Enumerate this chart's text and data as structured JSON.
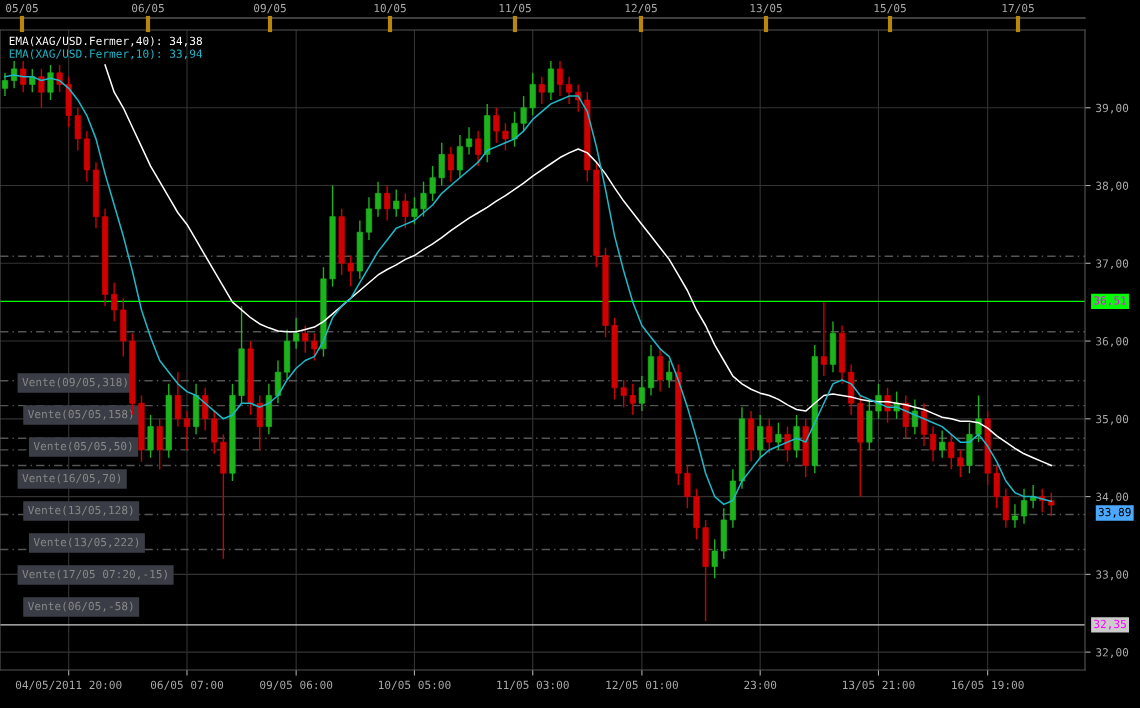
{
  "chart_data": {
    "type": "candlestick",
    "categories": [
      null,
      null,
      null,
      null,
      null,
      null,
      null,
      "04/05/2011 20:00",
      null,
      null,
      null,
      null,
      null,
      null,
      null,
      null,
      null,
      null,
      null,
      null,
      "06/05 07:00",
      null,
      null,
      null,
      null,
      null,
      null,
      null,
      null,
      null,
      null,
      null,
      "09/05 06:00",
      null,
      null,
      null,
      null,
      null,
      null,
      null,
      null,
      null,
      null,
      null,
      null,
      "10/05 05:00",
      null,
      null,
      null,
      null,
      null,
      null,
      null,
      null,
      null,
      null,
      null,
      null,
      "11/05 03:00",
      null,
      null,
      null,
      null,
      null,
      null,
      null,
      null,
      null,
      null,
      null,
      "12/05 01:00",
      null,
      null,
      null,
      null,
      null,
      null,
      null,
      null,
      null,
      null,
      null,
      null,
      "23:00",
      null,
      null,
      null,
      null,
      null,
      null,
      null,
      null,
      null,
      null,
      null,
      null,
      "13/05 21:00",
      null,
      null,
      null,
      null,
      null,
      null,
      null,
      null,
      null,
      null,
      null,
      "16/05 19:00",
      null,
      null,
      null,
      null,
      null,
      null,
      null
    ],
    "ohlc": [
      [
        39.25,
        39.45,
        39.15,
        39.35
      ],
      [
        39.35,
        39.6,
        39.25,
        39.5
      ],
      [
        39.5,
        39.6,
        39.2,
        39.3
      ],
      [
        39.3,
        39.5,
        39.2,
        39.4
      ],
      [
        39.4,
        39.5,
        39.0,
        39.2
      ],
      [
        39.2,
        39.55,
        39.1,
        39.45
      ],
      [
        39.45,
        39.55,
        39.2,
        39.3
      ],
      [
        39.3,
        39.4,
        38.75,
        38.9
      ],
      [
        38.9,
        39.0,
        38.45,
        38.6
      ],
      [
        38.6,
        38.7,
        38.05,
        38.2
      ],
      [
        38.2,
        38.3,
        37.45,
        37.6
      ],
      [
        37.6,
        37.7,
        36.45,
        36.6
      ],
      [
        36.6,
        36.75,
        36.25,
        36.4
      ],
      [
        36.4,
        36.55,
        35.8,
        36.0
      ],
      [
        36.0,
        36.1,
        35.05,
        35.2
      ],
      [
        35.2,
        35.3,
        34.45,
        34.6
      ],
      [
        34.6,
        35.05,
        34.5,
        34.9
      ],
      [
        34.9,
        35.0,
        34.35,
        34.6
      ],
      [
        34.6,
        35.45,
        34.5,
        35.3
      ],
      [
        35.3,
        35.6,
        34.9,
        35.0
      ],
      [
        35.0,
        35.1,
        34.6,
        34.9
      ],
      [
        34.9,
        35.45,
        34.8,
        35.3
      ],
      [
        35.3,
        35.4,
        34.85,
        35.0
      ],
      [
        35.0,
        35.1,
        34.55,
        34.7
      ],
      [
        34.7,
        34.8,
        33.2,
        34.3
      ],
      [
        34.3,
        35.45,
        34.2,
        35.3
      ],
      [
        35.3,
        36.45,
        35.2,
        35.9
      ],
      [
        35.9,
        36.0,
        35.05,
        35.2
      ],
      [
        35.2,
        35.3,
        34.6,
        34.9
      ],
      [
        34.9,
        35.45,
        34.8,
        35.3
      ],
      [
        35.3,
        35.75,
        35.2,
        35.6
      ],
      [
        35.6,
        36.15,
        35.5,
        36.0
      ],
      [
        36.0,
        36.3,
        35.9,
        36.1
      ],
      [
        36.1,
        36.2,
        35.85,
        36.0
      ],
      [
        36.0,
        36.1,
        35.75,
        35.9
      ],
      [
        35.9,
        36.95,
        35.8,
        36.8
      ],
      [
        36.8,
        38.0,
        36.7,
        37.6
      ],
      [
        37.6,
        37.7,
        36.85,
        37.0
      ],
      [
        37.0,
        37.1,
        36.7,
        36.9
      ],
      [
        36.9,
        37.55,
        36.8,
        37.4
      ],
      [
        37.4,
        37.85,
        37.3,
        37.7
      ],
      [
        37.7,
        38.05,
        37.6,
        37.9
      ],
      [
        37.9,
        38.0,
        37.55,
        37.7
      ],
      [
        37.7,
        37.95,
        37.6,
        37.8
      ],
      [
        37.8,
        37.9,
        37.45,
        37.6
      ],
      [
        37.6,
        37.85,
        37.5,
        37.7
      ],
      [
        37.7,
        38.05,
        37.6,
        37.9
      ],
      [
        37.9,
        38.25,
        37.8,
        38.1
      ],
      [
        38.1,
        38.55,
        38.0,
        38.4
      ],
      [
        38.4,
        38.5,
        38.05,
        38.2
      ],
      [
        38.2,
        38.65,
        38.1,
        38.5
      ],
      [
        38.5,
        38.75,
        38.4,
        38.6
      ],
      [
        38.6,
        38.7,
        38.25,
        38.4
      ],
      [
        38.4,
        39.05,
        38.3,
        38.9
      ],
      [
        38.9,
        39.0,
        38.55,
        38.7
      ],
      [
        38.7,
        38.8,
        38.45,
        38.6
      ],
      [
        38.6,
        38.95,
        38.5,
        38.8
      ],
      [
        38.8,
        39.15,
        38.7,
        39.0
      ],
      [
        39.0,
        39.45,
        38.9,
        39.3
      ],
      [
        39.3,
        39.4,
        39.05,
        39.2
      ],
      [
        39.2,
        39.6,
        39.1,
        39.5
      ],
      [
        39.5,
        39.6,
        39.15,
        39.3
      ],
      [
        39.3,
        39.4,
        39.05,
        39.2
      ],
      [
        39.2,
        39.3,
        38.95,
        39.1
      ],
      [
        39.1,
        39.2,
        38.05,
        38.2
      ],
      [
        38.2,
        38.3,
        36.95,
        37.1
      ],
      [
        37.1,
        37.2,
        36.05,
        36.2
      ],
      [
        36.2,
        36.3,
        35.25,
        35.4
      ],
      [
        35.4,
        35.5,
        35.15,
        35.3
      ],
      [
        35.3,
        35.45,
        35.05,
        35.2
      ],
      [
        35.2,
        35.55,
        35.1,
        35.4
      ],
      [
        35.4,
        35.95,
        35.3,
        35.8
      ],
      [
        35.8,
        35.9,
        35.35,
        35.5
      ],
      [
        35.5,
        35.75,
        35.4,
        35.6
      ],
      [
        35.6,
        35.7,
        34.15,
        34.3
      ],
      [
        34.3,
        34.4,
        33.85,
        34.0
      ],
      [
        34.0,
        34.1,
        33.45,
        33.6
      ],
      [
        33.6,
        33.7,
        32.4,
        33.1
      ],
      [
        33.1,
        33.45,
        32.95,
        33.3
      ],
      [
        33.3,
        33.85,
        33.2,
        33.7
      ],
      [
        33.7,
        34.35,
        33.6,
        34.2
      ],
      [
        34.2,
        35.15,
        34.1,
        35.0
      ],
      [
        35.0,
        35.1,
        34.45,
        34.6
      ],
      [
        34.6,
        35.05,
        34.5,
        34.9
      ],
      [
        34.9,
        35.0,
        34.55,
        34.7
      ],
      [
        34.7,
        34.95,
        34.6,
        34.8
      ],
      [
        34.8,
        34.9,
        34.45,
        34.6
      ],
      [
        34.6,
        35.05,
        34.5,
        34.9
      ],
      [
        34.9,
        35.0,
        34.25,
        34.4
      ],
      [
        34.4,
        35.95,
        34.3,
        35.8
      ],
      [
        35.8,
        36.5,
        35.55,
        35.7
      ],
      [
        35.7,
        36.25,
        35.6,
        36.1
      ],
      [
        36.1,
        36.2,
        35.45,
        35.6
      ],
      [
        35.6,
        35.7,
        35.05,
        35.2
      ],
      [
        35.2,
        35.3,
        34.0,
        34.7
      ],
      [
        34.7,
        35.25,
        34.6,
        35.1
      ],
      [
        35.1,
        35.45,
        35.0,
        35.3
      ],
      [
        35.3,
        35.4,
        34.95,
        35.1
      ],
      [
        35.1,
        35.35,
        35.0,
        35.2
      ],
      [
        35.2,
        35.3,
        34.75,
        34.9
      ],
      [
        34.9,
        35.25,
        34.8,
        35.1
      ],
      [
        35.1,
        35.2,
        34.65,
        34.8
      ],
      [
        34.8,
        34.9,
        34.45,
        34.6
      ],
      [
        34.6,
        34.85,
        34.5,
        34.7
      ],
      [
        34.7,
        34.8,
        34.35,
        34.5
      ],
      [
        34.5,
        34.6,
        34.25,
        34.4
      ],
      [
        34.4,
        34.95,
        34.3,
        34.8
      ],
      [
        34.8,
        35.3,
        34.7,
        35.0
      ],
      [
        35.0,
        35.1,
        34.15,
        34.3
      ],
      [
        34.3,
        34.4,
        33.85,
        34.0
      ],
      [
        34.0,
        34.1,
        33.6,
        33.7
      ],
      [
        33.7,
        33.9,
        33.6,
        33.75
      ],
      [
        33.75,
        34.1,
        33.65,
        33.95
      ],
      [
        33.95,
        34.15,
        33.85,
        34.0
      ],
      [
        34.0,
        34.1,
        33.8,
        33.95
      ],
      [
        33.95,
        34.05,
        33.75,
        33.89
      ]
    ],
    "series": [
      {
        "name": "EMA(XAG/USD.Fermer,40): 34,38",
        "type": "line",
        "color": "#ffffff",
        "values": [
          null,
          null,
          null,
          null,
          null,
          null,
          null,
          null,
          null,
          null,
          null,
          39.55,
          39.2,
          39.0,
          38.75,
          38.5,
          38.25,
          38.05,
          37.85,
          37.65,
          37.5,
          37.3,
          37.1,
          36.9,
          36.7,
          36.5,
          36.4,
          36.3,
          36.22,
          36.17,
          36.13,
          36.12,
          36.12,
          36.15,
          36.18,
          36.25,
          36.35,
          36.45,
          36.55,
          36.65,
          36.75,
          36.85,
          36.92,
          36.98,
          37.05,
          37.1,
          37.18,
          37.25,
          37.33,
          37.42,
          37.5,
          37.58,
          37.65,
          37.72,
          37.8,
          37.87,
          37.95,
          38.03,
          38.12,
          38.2,
          38.28,
          38.36,
          38.42,
          38.47,
          38.42,
          38.3,
          38.15,
          37.97,
          37.8,
          37.65,
          37.5,
          37.35,
          37.2,
          37.05,
          36.85,
          36.65,
          36.4,
          36.2,
          35.95,
          35.75,
          35.55,
          35.45,
          35.38,
          35.33,
          35.3,
          35.25,
          35.18,
          35.12,
          35.1,
          35.2,
          35.3,
          35.32,
          35.3,
          35.28,
          35.25,
          35.23,
          35.22,
          35.22,
          35.2,
          35.18,
          35.15,
          35.12,
          35.07,
          35.02,
          35.0,
          34.97,
          34.97,
          34.95,
          34.88,
          34.78,
          34.7,
          34.62,
          34.55,
          34.5,
          34.45,
          34.4
        ]
      },
      {
        "name": "EMA(XAG/USD.Fermer,10): 33,94",
        "type": "line",
        "color": "#1fb8c8",
        "values": [
          39.4,
          39.42,
          39.4,
          39.4,
          39.35,
          39.38,
          39.35,
          39.25,
          39.1,
          38.9,
          38.6,
          38.15,
          37.75,
          37.35,
          36.9,
          36.4,
          36.05,
          35.75,
          35.6,
          35.45,
          35.35,
          35.3,
          35.2,
          35.1,
          35.0,
          35.05,
          35.2,
          35.2,
          35.15,
          35.2,
          35.3,
          35.5,
          35.65,
          35.75,
          35.8,
          36.0,
          36.3,
          36.45,
          36.55,
          36.75,
          36.95,
          37.15,
          37.3,
          37.45,
          37.5,
          37.55,
          37.65,
          37.75,
          37.9,
          38.0,
          38.1,
          38.2,
          38.3,
          38.45,
          38.5,
          38.55,
          38.6,
          38.7,
          38.85,
          38.95,
          39.05,
          39.1,
          39.15,
          39.15,
          38.95,
          38.5,
          37.95,
          37.35,
          36.9,
          36.5,
          36.2,
          36.05,
          35.9,
          35.8,
          35.5,
          35.15,
          34.75,
          34.3,
          34.0,
          33.9,
          33.95,
          34.2,
          34.35,
          34.5,
          34.6,
          34.65,
          34.7,
          34.75,
          34.7,
          34.95,
          35.2,
          35.45,
          35.5,
          35.45,
          35.3,
          35.25,
          35.2,
          35.15,
          35.15,
          35.1,
          35.05,
          35.0,
          34.95,
          34.9,
          34.8,
          34.7,
          34.7,
          34.8,
          34.65,
          34.45,
          34.2,
          34.05,
          34.0,
          34.0,
          33.97,
          33.94
        ]
      }
    ],
    "ylim": [
      31.77,
      40.0
    ],
    "yticks": [
      {
        "value": 32,
        "label": "32,00"
      },
      {
        "value": 33,
        "label": "33,00"
      },
      {
        "value": 34,
        "label": "34,00"
      },
      {
        "value": 35,
        "label": "35,00"
      },
      {
        "value": 36,
        "label": "36,00"
      },
      {
        "value": 37,
        "label": "37,00"
      },
      {
        "value": 38,
        "label": "38,00"
      },
      {
        "value": 39,
        "label": "39,00"
      }
    ],
    "ref_lines": [
      {
        "axis": "y",
        "value": 36.51,
        "label": "36,51",
        "color": "#00ff00",
        "line_style": "solid"
      },
      {
        "axis": "y",
        "value": 32.35,
        "label": "32,35",
        "color": "#cccccc",
        "line_style": "solid"
      },
      {
        "axis": "y",
        "value": 37.09,
        "color": "#555555",
        "line_style": "dashed"
      },
      {
        "axis": "y",
        "value": 36.12,
        "color": "#555555",
        "line_style": "dashed"
      },
      {
        "axis": "y",
        "value": 35.49,
        "color": "#555555",
        "line_style": "dashed"
      },
      {
        "axis": "y",
        "value": 35.17,
        "color": "#555555",
        "line_style": "dashed"
      },
      {
        "axis": "y",
        "value": 34.75,
        "color": "#555555",
        "line_style": "dashed"
      },
      {
        "axis": "y",
        "value": 34.6,
        "color": "#555555",
        "line_style": "dashed"
      },
      {
        "axis": "y",
        "value": 34.4,
        "color": "#555555",
        "line_style": "dashed"
      },
      {
        "axis": "y",
        "value": 33.77,
        "color": "#555555",
        "line_style": "dashed"
      },
      {
        "axis": "y",
        "value": 33.32,
        "color": "#555555",
        "line_style": "dashed"
      }
    ],
    "annotations": [
      "Vente(09/05,318)",
      "Vente(05/05,158)",
      "Vente(05/05,50)",
      "Vente(16/05,70)",
      "Vente(13/05,128)",
      "Vente(13/05,222)",
      "Vente(17/05 07:20,-15)",
      "Vente(06/05,-58)",
      "33,89",
      "05/05",
      "06/05",
      "09/05",
      "10/05",
      "11/05",
      "12/05",
      "13/05",
      "15/05",
      "17/05"
    ],
    "grid": true,
    "legend": "top left"
  }
}
